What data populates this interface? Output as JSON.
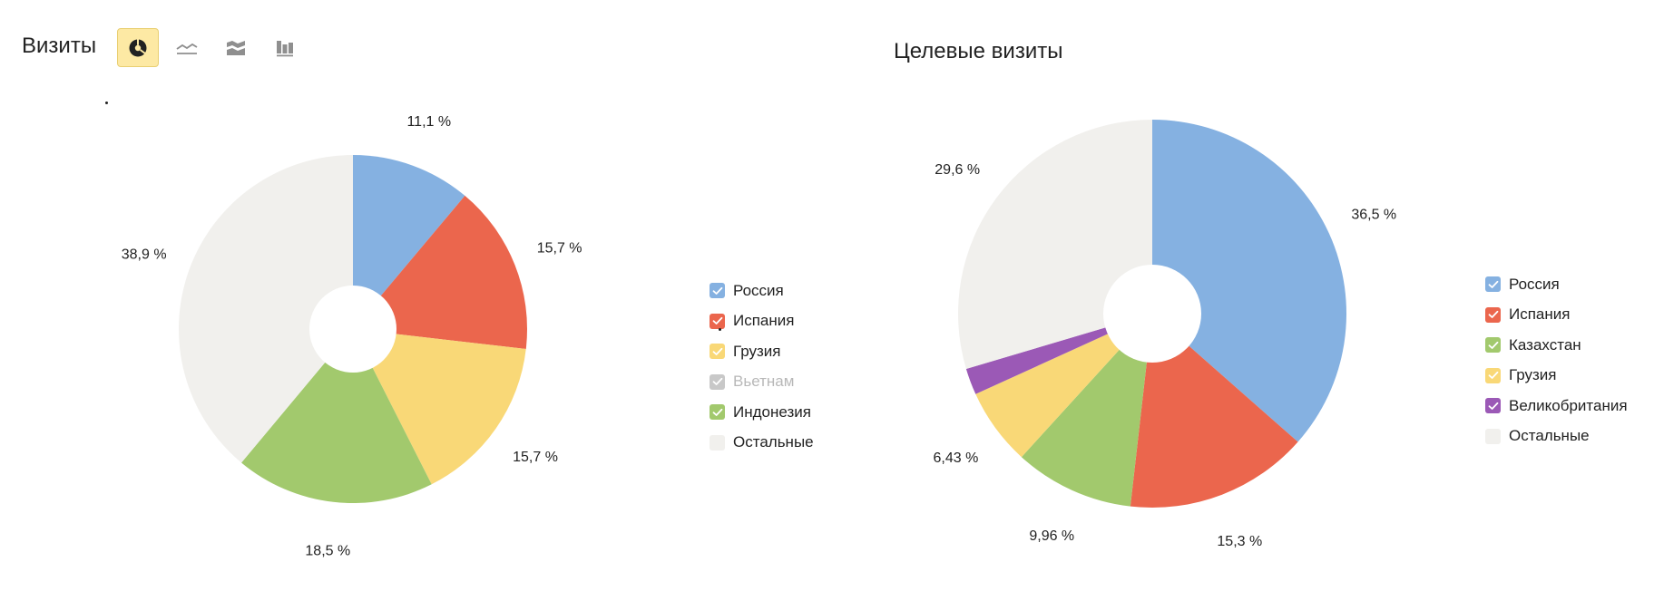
{
  "header": {
    "left_title": "Визиты",
    "right_title": "Целевые визиты",
    "toolbar": [
      {
        "icon": "pie-chart-icon",
        "active": true
      },
      {
        "icon": "line-chart-icon",
        "active": false
      },
      {
        "icon": "area-chart-icon",
        "active": false
      },
      {
        "icon": "stacked-bar-chart-icon",
        "active": false
      }
    ]
  },
  "chart_data": [
    {
      "type": "pie",
      "title": "Визиты",
      "slices": [
        {
          "label": "Россия",
          "value": 11.1,
          "display": "11,1 %",
          "color": "#85b1e1"
        },
        {
          "label": "Испания",
          "value": 15.7,
          "display": "15,7 %",
          "color": "#eb664d"
        },
        {
          "label": "Грузия",
          "value": 15.7,
          "display": "15,7 %",
          "color": "#f9d877"
        },
        {
          "label": "Индонезия",
          "value": 18.5,
          "display": "18,5 %",
          "color": "#a2c96d"
        },
        {
          "label": "Остальные",
          "value": 38.9,
          "display": "38,9 %",
          "color": "#f1f0ed"
        }
      ],
      "legend": [
        {
          "label": "Россия",
          "color": "#85b1e1",
          "checked": true,
          "enabled": true
        },
        {
          "label": "Испания",
          "color": "#eb664d",
          "checked": true,
          "enabled": true
        },
        {
          "label": "Грузия",
          "color": "#f9d877",
          "checked": true,
          "enabled": true
        },
        {
          "label": "Вьетнам",
          "color": "#c8c8c8",
          "checked": true,
          "enabled": false
        },
        {
          "label": "Индонезия",
          "color": "#a2c96d",
          "checked": true,
          "enabled": true
        },
        {
          "label": "Остальные",
          "color": "#f1f0ed",
          "checked": false,
          "enabled": true
        }
      ]
    },
    {
      "type": "pie",
      "title": "Целевые визиты",
      "slices": [
        {
          "label": "Россия",
          "value": 36.5,
          "display": "36,5 %",
          "color": "#85b1e1"
        },
        {
          "label": "Испания",
          "value": 15.3,
          "display": "15,3 %",
          "color": "#eb664d"
        },
        {
          "label": "Казахстан",
          "value": 9.96,
          "display": "9,96 %",
          "color": "#a2c96d"
        },
        {
          "label": "Грузия",
          "value": 6.43,
          "display": "6,43 %",
          "color": "#f9d877"
        },
        {
          "label": "Великобритания",
          "value": 2.21,
          "display": "",
          "color": "#9b59b6"
        },
        {
          "label": "Остальные",
          "value": 29.6,
          "display": "29,6 %",
          "color": "#f1f0ed"
        }
      ],
      "legend": [
        {
          "label": "Россия",
          "color": "#85b1e1",
          "checked": true,
          "enabled": true
        },
        {
          "label": "Испания",
          "color": "#eb664d",
          "checked": true,
          "enabled": true
        },
        {
          "label": "Казахстан",
          "color": "#a2c96d",
          "checked": true,
          "enabled": true
        },
        {
          "label": "Грузия",
          "color": "#f9d877",
          "checked": true,
          "enabled": true
        },
        {
          "label": "Великобритания",
          "color": "#9b59b6",
          "checked": true,
          "enabled": true
        },
        {
          "label": "Остальные",
          "color": "#f1f0ed",
          "checked": false,
          "enabled": true
        }
      ]
    }
  ]
}
